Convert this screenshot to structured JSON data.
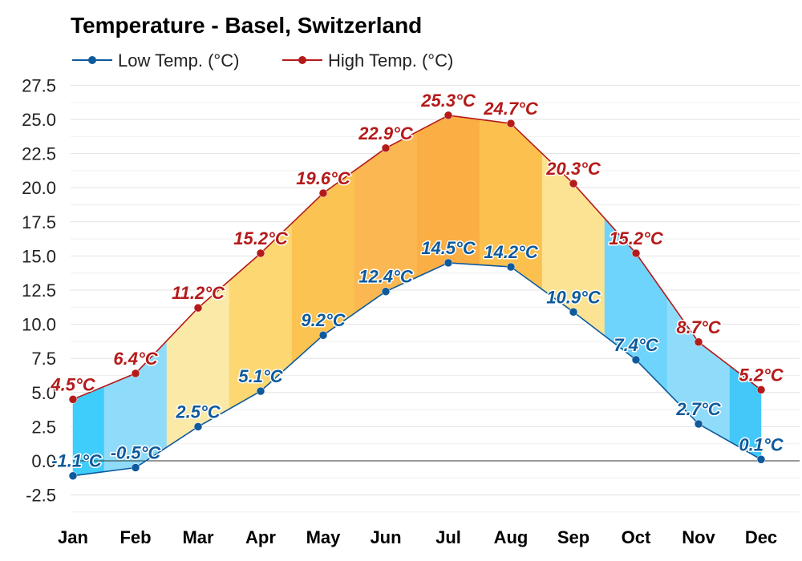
{
  "chart_data": {
    "type": "area",
    "title": "Temperature - Basel, Switzerland",
    "categories": [
      "Jan",
      "Feb",
      "Mar",
      "Apr",
      "May",
      "Jun",
      "Jul",
      "Aug",
      "Sep",
      "Oct",
      "Nov",
      "Dec"
    ],
    "series": [
      {
        "name": "Low Temp. (°C)",
        "values": [
          -1.1,
          -0.5,
          2.5,
          5.1,
          9.2,
          12.4,
          14.5,
          14.2,
          10.9,
          7.4,
          2.7,
          0.1
        ],
        "color": "#0e5a9c"
      },
      {
        "name": "High Temp. (°C)",
        "values": [
          4.5,
          6.4,
          11.2,
          15.2,
          19.6,
          22.9,
          25.3,
          24.7,
          20.3,
          15.2,
          8.7,
          5.2
        ],
        "color": "#b51a1a"
      }
    ],
    "unit_suffix": "°C",
    "yticks": [
      -2.5,
      0.0,
      2.5,
      5.0,
      7.5,
      10.0,
      12.5,
      15.0,
      17.5,
      20.0,
      22.5,
      25.0,
      27.5
    ],
    "ylim": [
      -3.5,
      28
    ],
    "xlabel": "",
    "ylabel": "",
    "legend": "top-left",
    "grid": true,
    "band_fill_colors": [
      "#3fcdfb",
      "#8fdcfa",
      "#fbe9a8",
      "#fcd772",
      "#fbc352",
      "#fbb751",
      "#fbae44",
      "#fcc04f",
      "#fce393",
      "#6fd4fb",
      "#8fdcfa",
      "#44c8fa"
    ]
  }
}
